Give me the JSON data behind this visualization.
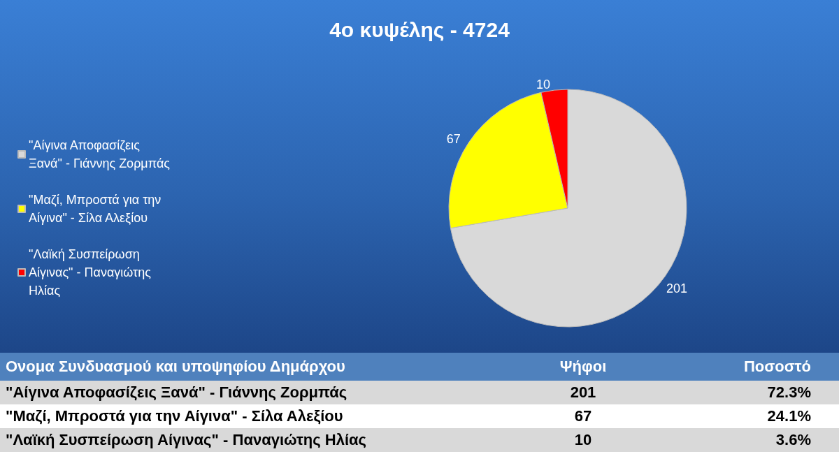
{
  "chart_data": {
    "type": "pie",
    "title": "4ο κυψέλης - 4724",
    "categories": [
      "\"Αίγινα Αποφασίζεις Ξανά\" - Γιάννης Ζορμπάς",
      "\"Μαζί, Μπροστά για την Αίγινα\" - Σίλα Αλεξίου",
      "\"Λαϊκή Συσπείρωση Αίγινας\" - Παναγιώτης Ηλίας"
    ],
    "values": [
      201,
      67,
      10
    ],
    "colors": [
      "#d9d9d9",
      "#ffff00",
      "#ff0000"
    ],
    "data_labels": true,
    "legend": "left",
    "annotations": [
      "Ονομα Συνδυασμού και υποψηφίου Δημάρχου",
      "Ψήφοι",
      "Ποσοστό",
      "201",
      "72.3%",
      "67",
      "24.1%",
      "10",
      "3.6%"
    ]
  }
}
